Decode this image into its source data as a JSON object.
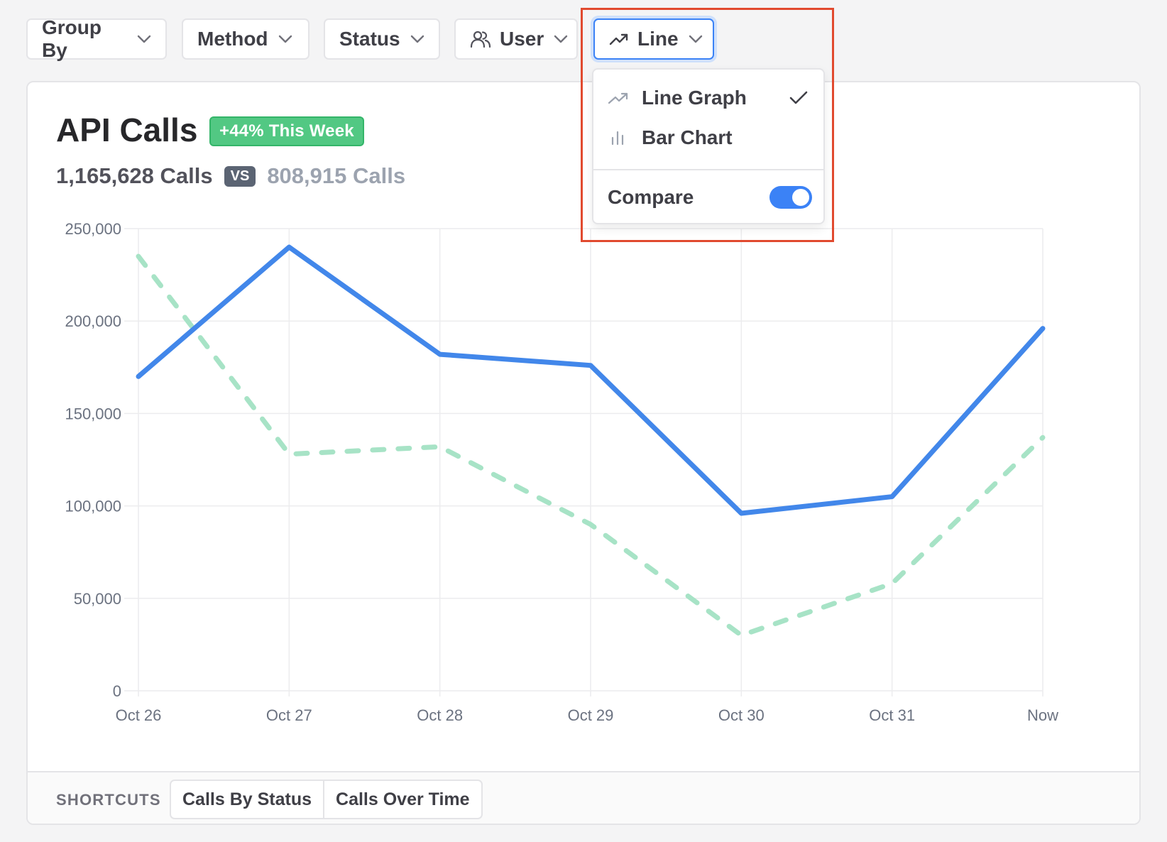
{
  "filters": {
    "group_by": "Group By",
    "method": "Method",
    "status": "Status",
    "user": "User",
    "chart_type": "Line"
  },
  "card": {
    "title": "API Calls",
    "badge": "+44% This Week",
    "current_total": "1,165,628 Calls",
    "vs": "VS",
    "previous_total": "808,915 Calls"
  },
  "dropdown": {
    "line_graph": "Line Graph",
    "bar_chart": "Bar Chart",
    "compare": "Compare",
    "compare_enabled": true,
    "selected": "Line Graph"
  },
  "footer": {
    "shortcuts_label": "SHORTCUTS",
    "calls_by_status": "Calls By Status",
    "calls_over_time": "Calls Over Time"
  },
  "colors": {
    "current_series": "#4287ea",
    "previous_series": "#a7e3c6",
    "badge": "#52c883",
    "accent": "#3b82f6"
  },
  "chart_data": {
    "type": "line",
    "title": "",
    "xlabel": "",
    "ylabel": "",
    "categories": [
      "Oct 26",
      "Oct 27",
      "Oct 28",
      "Oct 29",
      "Oct 30",
      "Oct 31",
      "Now"
    ],
    "ylim": [
      0,
      250000
    ],
    "yticks": [
      0,
      50000,
      100000,
      150000,
      200000,
      250000
    ],
    "ytick_labels": [
      "0",
      "50,000",
      "100,000",
      "150,000",
      "200,000",
      "250,000"
    ],
    "grid": true,
    "series": [
      {
        "values": [
          170000,
          240000,
          182000,
          176000,
          96000,
          105000,
          196000
        ],
        "style": "solid"
      },
      {
        "values": [
          235000,
          128000,
          132000,
          90000,
          30000,
          58000,
          137000
        ],
        "style": "dashed"
      }
    ]
  }
}
